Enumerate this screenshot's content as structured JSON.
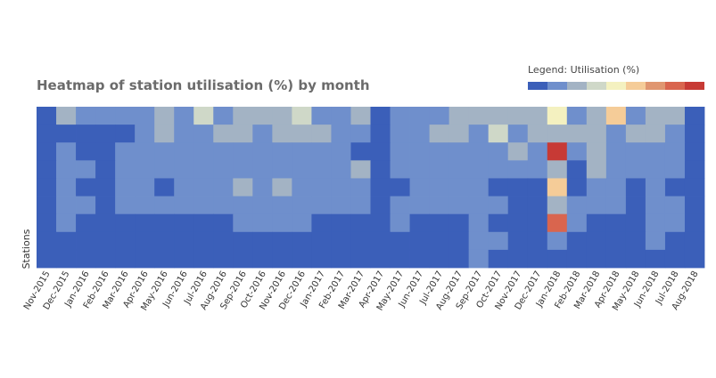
{
  "chart_data": {
    "type": "heatmap",
    "title": "Heatmap of station utilisation (%) by month",
    "ylabel": "Stations",
    "legend_title": "Legend: Utilisation (%)",
    "legend_placement": "top-right",
    "legend_colors": [
      "#3b5fb9",
      "#6f8fcc",
      "#a3b3c4",
      "#cfd8c8",
      "#f4f1c0",
      "#f5cc98",
      "#e09670",
      "#d9654e",
      "#c73a35"
    ],
    "months": [
      "Nov-2015",
      "Dec-2015",
      "Jan-2016",
      "Feb-2016",
      "Mar-2016",
      "Apr-2016",
      "May-2016",
      "Jun-2016",
      "Jul-2016",
      "Aug-2016",
      "Sep-2016",
      "Oct-2016",
      "Nov-2016",
      "Dec-2016",
      "Jan-2017",
      "Feb-2017",
      "Mar-2017",
      "Apr-2017",
      "May-2017",
      "Jun-2017",
      "Jul-2017",
      "Aug-2017",
      "Sep-2017",
      "Oct-2017",
      "Nov-2017",
      "Dec-2017",
      "Jan-2018",
      "Feb-2018",
      "Mar-2018",
      "Apr-2018",
      "May-2018",
      "Jun-2018",
      "Jul-2018",
      "Aug-2018"
    ],
    "color_levels": [
      [
        0,
        2,
        1,
        1,
        1,
        1,
        2,
        1,
        3,
        1,
        2,
        2,
        2,
        3,
        1,
        1,
        2,
        0,
        1,
        1,
        1,
        2,
        2,
        2,
        2,
        2,
        4,
        1,
        2,
        5,
        1,
        2,
        2,
        0
      ],
      [
        0,
        0,
        0,
        0,
        0,
        1,
        2,
        1,
        1,
        2,
        2,
        1,
        2,
        2,
        2,
        1,
        1,
        0,
        1,
        1,
        2,
        2,
        1,
        3,
        1,
        2,
        2,
        2,
        2,
        1,
        2,
        2,
        1,
        0
      ],
      [
        0,
        1,
        0,
        0,
        1,
        1,
        1,
        1,
        1,
        1,
        1,
        1,
        1,
        1,
        1,
        1,
        0,
        0,
        1,
        1,
        1,
        1,
        1,
        1,
        2,
        1,
        8,
        1,
        2,
        1,
        1,
        1,
        1,
        0
      ],
      [
        0,
        1,
        1,
        0,
        1,
        1,
        1,
        1,
        1,
        1,
        1,
        1,
        1,
        1,
        1,
        1,
        2,
        0,
        1,
        1,
        1,
        1,
        1,
        1,
        1,
        1,
        2,
        0,
        2,
        1,
        1,
        1,
        1,
        0
      ],
      [
        0,
        1,
        0,
        0,
        1,
        1,
        0,
        1,
        1,
        1,
        2,
        1,
        2,
        1,
        1,
        1,
        1,
        0,
        0,
        1,
        1,
        1,
        1,
        0,
        0,
        0,
        5,
        0,
        1,
        1,
        0,
        1,
        0,
        0
      ],
      [
        0,
        1,
        1,
        0,
        1,
        1,
        1,
        1,
        1,
        1,
        1,
        1,
        1,
        1,
        1,
        1,
        1,
        0,
        1,
        1,
        1,
        1,
        1,
        1,
        0,
        0,
        2,
        1,
        1,
        1,
        0,
        1,
        1,
        0
      ],
      [
        0,
        1,
        0,
        0,
        0,
        0,
        0,
        0,
        0,
        0,
        1,
        1,
        1,
        1,
        0,
        0,
        0,
        0,
        1,
        0,
        0,
        0,
        1,
        0,
        0,
        0,
        7,
        1,
        0,
        0,
        0,
        1,
        1,
        0
      ],
      [
        0,
        0,
        0,
        0,
        0,
        0,
        0,
        0,
        0,
        0,
        0,
        0,
        0,
        0,
        0,
        0,
        0,
        0,
        0,
        0,
        0,
        0,
        1,
        1,
        0,
        0,
        1,
        0,
        0,
        0,
        0,
        1,
        0,
        0
      ],
      [
        0,
        0,
        0,
        0,
        0,
        0,
        0,
        0,
        0,
        0,
        0,
        0,
        0,
        0,
        0,
        0,
        0,
        0,
        0,
        0,
        0,
        0,
        1,
        0,
        0,
        0,
        0,
        0,
        0,
        0,
        0,
        0,
        0,
        0
      ]
    ],
    "grid": false
  }
}
